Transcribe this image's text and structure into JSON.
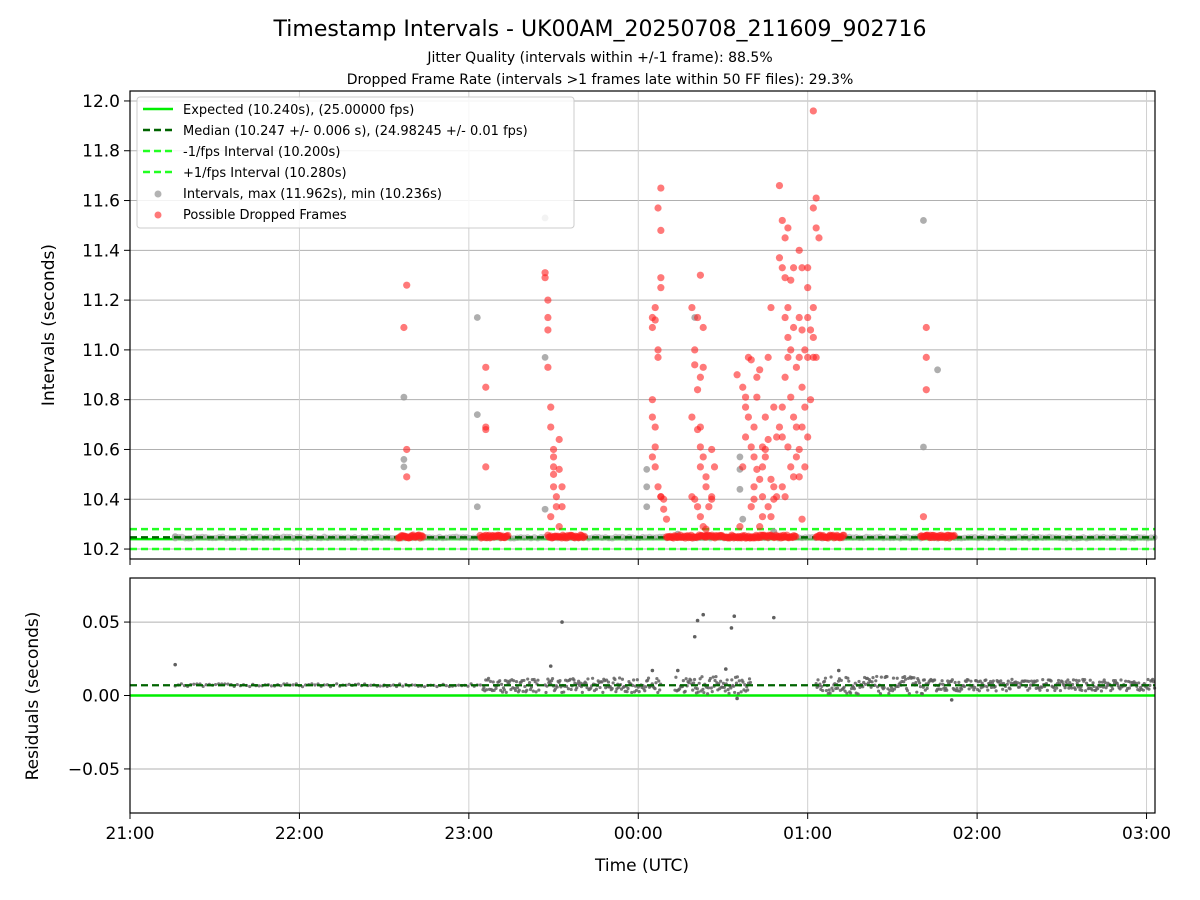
{
  "title": "Timestamp Intervals - UK00AM_20250708_211609_902716",
  "subtitle1": "Jitter Quality (intervals within +/-1 frame): 88.5%",
  "subtitle2": "Dropped Frame Rate (intervals >1 frames late within 50 FF files): 29.3%",
  "colors": {
    "expected": "#00ee00",
    "median": "#006400",
    "bounds": "#22ff22",
    "intervals": "#9a9a9a",
    "dropped": "#ff2020",
    "residuals": "#606060",
    "grid": "#b0b0b0"
  },
  "chart_data": [
    {
      "type": "scatter",
      "ylabel": "Intervals (seconds)",
      "ylim": [
        10.16,
        12.04
      ],
      "yticks": [
        "10.2",
        "10.4",
        "10.6",
        "10.8",
        "11.0",
        "11.2",
        "11.4",
        "11.6",
        "11.8",
        "12.0"
      ],
      "ytick_values": [
        10.2,
        10.4,
        10.6,
        10.8,
        11.0,
        11.2,
        11.4,
        11.6,
        11.8,
        12.0
      ],
      "grid": true,
      "legend_position": "top-left",
      "legend": [
        "Expected (10.240s), (25.00000 fps)",
        "Median (10.247 +/- 0.006 s), (24.98245 +/- 0.01 fps)",
        "-1/fps Interval (10.200s)",
        "+1/fps Interval (10.280s)",
        "Intervals, max (11.962s), min (10.236s)",
        "Possible Dropped Frames"
      ],
      "reference_lines": {
        "expected": 10.24,
        "median": 10.247,
        "minus_one_frame": 10.2,
        "plus_one_frame": 10.28
      },
      "intervals": [
        [
          "21:16",
          10.25
        ],
        [
          "22:37",
          10.81
        ],
        [
          "22:37",
          10.56
        ],
        [
          "22:37",
          10.53
        ],
        [
          "23:03",
          11.13
        ],
        [
          "23:03",
          10.74
        ],
        [
          "23:03",
          10.37
        ],
        [
          "23:27",
          10.97
        ],
        [
          "23:27",
          10.36
        ],
        [
          "23:27",
          11.53
        ],
        [
          "00:03",
          10.52
        ],
        [
          "00:03",
          10.45
        ],
        [
          "00:03",
          10.37
        ],
        [
          "00:20",
          11.13
        ],
        [
          "00:36",
          10.57
        ],
        [
          "00:36",
          10.52
        ],
        [
          "00:36",
          10.44
        ],
        [
          "00:37",
          10.32
        ],
        [
          "01:41",
          11.52
        ],
        [
          "01:41",
          10.61
        ],
        [
          "01:46",
          10.92
        ],
        [
          "00:14",
          10.26
        ],
        [
          "00:48",
          10.27
        ]
      ],
      "dropped_frames": [
        [
          "22:38",
          11.26
        ],
        [
          "22:37",
          11.09
        ],
        [
          "22:38",
          10.6
        ],
        [
          "22:38",
          10.49
        ],
        [
          "23:06",
          10.93
        ],
        [
          "23:06",
          10.85
        ],
        [
          "23:06",
          10.69
        ],
        [
          "23:06",
          10.68
        ],
        [
          "23:06",
          10.53
        ],
        [
          "23:27",
          11.31
        ],
        [
          "23:27",
          11.29
        ],
        [
          "23:28",
          11.2
        ],
        [
          "23:28",
          11.13
        ],
        [
          "23:28",
          11.08
        ],
        [
          "23:28",
          10.93
        ],
        [
          "23:29",
          10.69
        ],
        [
          "23:29",
          10.77
        ],
        [
          "23:30",
          10.6
        ],
        [
          "23:30",
          10.57
        ],
        [
          "23:30",
          10.53
        ],
        [
          "23:30",
          10.5
        ],
        [
          "23:30",
          10.45
        ],
        [
          "23:31",
          10.41
        ],
        [
          "23:31",
          10.37
        ],
        [
          "23:32",
          10.64
        ],
        [
          "23:32",
          10.52
        ],
        [
          "23:33",
          10.45
        ],
        [
          "23:33",
          10.37
        ],
        [
          "23:32",
          10.29
        ],
        [
          "23:29",
          10.33
        ],
        [
          "00:08",
          11.65
        ],
        [
          "00:07",
          11.57
        ],
        [
          "00:08",
          11.48
        ],
        [
          "00:08",
          11.29
        ],
        [
          "00:08",
          11.25
        ],
        [
          "00:06",
          11.17
        ],
        [
          "00:05",
          11.13
        ],
        [
          "00:06",
          11.12
        ],
        [
          "00:05",
          11.09
        ],
        [
          "00:07",
          11.0
        ],
        [
          "00:07",
          10.97
        ],
        [
          "00:05",
          10.8
        ],
        [
          "00:05",
          10.73
        ],
        [
          "00:06",
          10.69
        ],
        [
          "00:06",
          10.61
        ],
        [
          "00:05",
          10.57
        ],
        [
          "00:06",
          10.53
        ],
        [
          "00:07",
          10.45
        ],
        [
          "00:08",
          10.41
        ],
        [
          "00:09",
          10.4
        ],
        [
          "00:09",
          10.36
        ],
        [
          "00:10",
          10.32
        ],
        [
          "00:08",
          10.41
        ],
        [
          "00:19",
          11.17
        ],
        [
          "00:21",
          11.13
        ],
        [
          "00:23",
          11.09
        ],
        [
          "00:20",
          11.0
        ],
        [
          "00:20",
          10.94
        ],
        [
          "00:22",
          10.89
        ],
        [
          "00:19",
          10.73
        ],
        [
          "00:21",
          10.68
        ],
        [
          "00:22",
          10.61
        ],
        [
          "00:23",
          10.57
        ],
        [
          "00:22",
          10.53
        ],
        [
          "00:24",
          10.49
        ],
        [
          "00:24",
          10.45
        ],
        [
          "00:19",
          10.41
        ],
        [
          "00:21",
          10.37
        ],
        [
          "00:22",
          10.33
        ],
        [
          "00:23",
          10.29
        ],
        [
          "00:25",
          10.37
        ],
        [
          "00:26",
          10.4
        ],
        [
          "00:26",
          10.6
        ],
        [
          "00:27",
          10.53
        ],
        [
          "00:22",
          11.3
        ],
        [
          "00:20",
          10.4
        ],
        [
          "00:21",
          10.84
        ],
        [
          "00:23",
          10.93
        ],
        [
          "00:26",
          10.41
        ],
        [
          "00:24",
          10.28
        ],
        [
          "00:35",
          10.9
        ],
        [
          "00:37",
          10.85
        ],
        [
          "00:38",
          10.81
        ],
        [
          "00:39",
          10.97
        ],
        [
          "00:40",
          10.96
        ],
        [
          "00:38",
          10.77
        ],
        [
          "00:39",
          10.73
        ],
        [
          "00:41",
          10.69
        ],
        [
          "00:38",
          10.65
        ],
        [
          "00:40",
          10.61
        ],
        [
          "00:41",
          10.57
        ],
        [
          "00:37",
          10.53
        ],
        [
          "00:42",
          10.89
        ],
        [
          "00:43",
          10.92
        ],
        [
          "00:42",
          10.52
        ],
        [
          "00:43",
          10.48
        ],
        [
          "00:44",
          10.41
        ],
        [
          "00:41",
          10.4
        ],
        [
          "00:44",
          10.33
        ],
        [
          "00:43",
          10.29
        ],
        [
          "00:41",
          10.45
        ],
        [
          "00:45",
          10.73
        ],
        [
          "00:47",
          11.17
        ],
        [
          "00:46",
          10.97
        ],
        [
          "00:46",
          10.64
        ],
        [
          "00:45",
          10.57
        ],
        [
          "00:44",
          10.53
        ],
        [
          "00:47",
          10.48
        ],
        [
          "00:48",
          10.45
        ],
        [
          "00:49",
          10.41
        ],
        [
          "00:48",
          10.4
        ],
        [
          "00:46",
          10.37
        ],
        [
          "00:47",
          10.33
        ],
        [
          "00:45",
          10.6
        ],
        [
          "00:42",
          10.81
        ],
        [
          "00:50",
          11.66
        ],
        [
          "00:51",
          11.52
        ],
        [
          "00:52",
          11.45
        ],
        [
          "00:53",
          11.49
        ],
        [
          "00:50",
          11.37
        ],
        [
          "00:51",
          11.33
        ],
        [
          "00:52",
          11.29
        ],
        [
          "00:54",
          11.28
        ],
        [
          "00:55",
          11.33
        ],
        [
          "00:53",
          11.17
        ],
        [
          "00:55",
          11.09
        ],
        [
          "00:52",
          11.13
        ],
        [
          "00:53",
          11.05
        ],
        [
          "00:54",
          11.0
        ],
        [
          "00:53",
          10.97
        ],
        [
          "00:52",
          10.89
        ],
        [
          "00:51",
          10.77
        ],
        [
          "00:54",
          10.81
        ],
        [
          "00:55",
          10.73
        ],
        [
          "00:50",
          10.69
        ],
        [
          "00:51",
          10.65
        ],
        [
          "00:53",
          10.61
        ],
        [
          "00:56",
          10.69
        ],
        [
          "00:56",
          10.57
        ],
        [
          "00:54",
          10.53
        ],
        [
          "00:55",
          10.49
        ],
        [
          "00:51",
          10.45
        ],
        [
          "00:52",
          10.41
        ],
        [
          "00:57",
          11.4
        ],
        [
          "00:58",
          11.33
        ],
        [
          "00:57",
          11.13
        ],
        [
          "00:58",
          11.08
        ],
        [
          "00:59",
          11.0
        ],
        [
          "00:57",
          10.97
        ],
        [
          "00:56",
          10.93
        ],
        [
          "00:58",
          10.85
        ],
        [
          "00:59",
          10.77
        ],
        [
          "00:58",
          10.69
        ],
        [
          "00:57",
          10.6
        ],
        [
          "00:59",
          10.53
        ],
        [
          "00:57",
          10.49
        ],
        [
          "00:58",
          10.32
        ],
        [
          "00:48",
          10.77
        ],
        [
          "00:49",
          10.65
        ],
        [
          "01:00",
          11.13
        ],
        [
          "01:01",
          11.08
        ],
        [
          "01:00",
          10.97
        ],
        [
          "01:02",
          10.97
        ],
        [
          "01:01",
          10.8
        ],
        [
          "01:00",
          10.65
        ],
        [
          "01:02",
          11.17
        ],
        [
          "01:03",
          11.61
        ],
        [
          "01:02",
          11.57
        ],
        [
          "01:03",
          11.49
        ],
        [
          "01:04",
          11.45
        ],
        [
          "01:00",
          11.25
        ],
        [
          "01:02",
          11.05
        ],
        [
          "01:03",
          10.97
        ],
        [
          "01:02",
          11.96
        ],
        [
          "01:00",
          11.33
        ],
        [
          "01:42",
          11.09
        ],
        [
          "01:42",
          10.97
        ],
        [
          "01:42",
          10.84
        ],
        [
          "01:41",
          10.33
        ],
        [
          "00:22",
          10.69
        ],
        [
          "00:40",
          10.37
        ],
        [
          "00:36",
          10.29
        ],
        [
          "00:44",
          10.61
        ]
      ],
      "dropped_clusters": [
        [
          "22:35",
          "22:44"
        ],
        [
          "23:04",
          "23:14"
        ],
        [
          "23:28",
          "23:41"
        ],
        [
          "00:10",
          "00:24"
        ],
        [
          "00:24",
          "00:40"
        ],
        [
          "00:40",
          "00:56"
        ],
        [
          "01:03",
          "01:13"
        ],
        [
          "01:40",
          "01:52"
        ]
      ],
      "dropped_cluster_value": 10.25
    },
    {
      "type": "scatter",
      "ylabel": "Residuals (seconds)",
      "xlabel": "Time (UTC)",
      "ylim": [
        -0.08,
        0.08
      ],
      "yticks": [
        "0.05",
        "0.00",
        "−0.05"
      ],
      "ytick_values": [
        0.05,
        0.0,
        -0.05
      ],
      "xlim": [
        "21:00",
        "03:03"
      ],
      "xticks": [
        "21:00",
        "22:00",
        "23:00",
        "00:00",
        "01:00",
        "02:00",
        "03:00"
      ],
      "grid": true,
      "reference_lines": {
        "zero": 0.0,
        "median_residual": 0.007
      },
      "outliers": [
        [
          "21:16",
          0.021
        ],
        [
          "23:29",
          0.02
        ],
        [
          "23:33",
          0.05
        ],
        [
          "00:20",
          0.04
        ],
        [
          "00:21",
          0.051
        ],
        [
          "00:23",
          0.055
        ],
        [
          "00:33",
          0.046
        ],
        [
          "00:34",
          0.054
        ],
        [
          "00:48",
          0.053
        ],
        [
          "00:31",
          0.018
        ],
        [
          "00:35",
          -0.002
        ],
        [
          "01:51",
          -0.003
        ],
        [
          "00:05",
          0.017
        ],
        [
          "00:14",
          0.017
        ],
        [
          "01:11",
          0.017
        ]
      ],
      "residual_bands": [
        {
          "start": "21:16",
          "end": "22:30",
          "center": 0.007,
          "spread": 0.001
        },
        {
          "start": "22:30",
          "end": "23:05",
          "center": 0.007,
          "spread": 0.001
        },
        {
          "start": "23:05",
          "end": "23:25",
          "center": 0.007,
          "spread": 0.005
        },
        {
          "start": "23:27",
          "end": "00:08",
          "center": 0.007,
          "spread": 0.005
        },
        {
          "start": "00:13",
          "end": "00:40",
          "center": 0.007,
          "spread": 0.006
        },
        {
          "start": "01:03",
          "end": "01:41",
          "center": 0.007,
          "spread": 0.006
        },
        {
          "start": "01:41",
          "end": "03:03",
          "center": 0.007,
          "spread": 0.004
        }
      ]
    }
  ]
}
